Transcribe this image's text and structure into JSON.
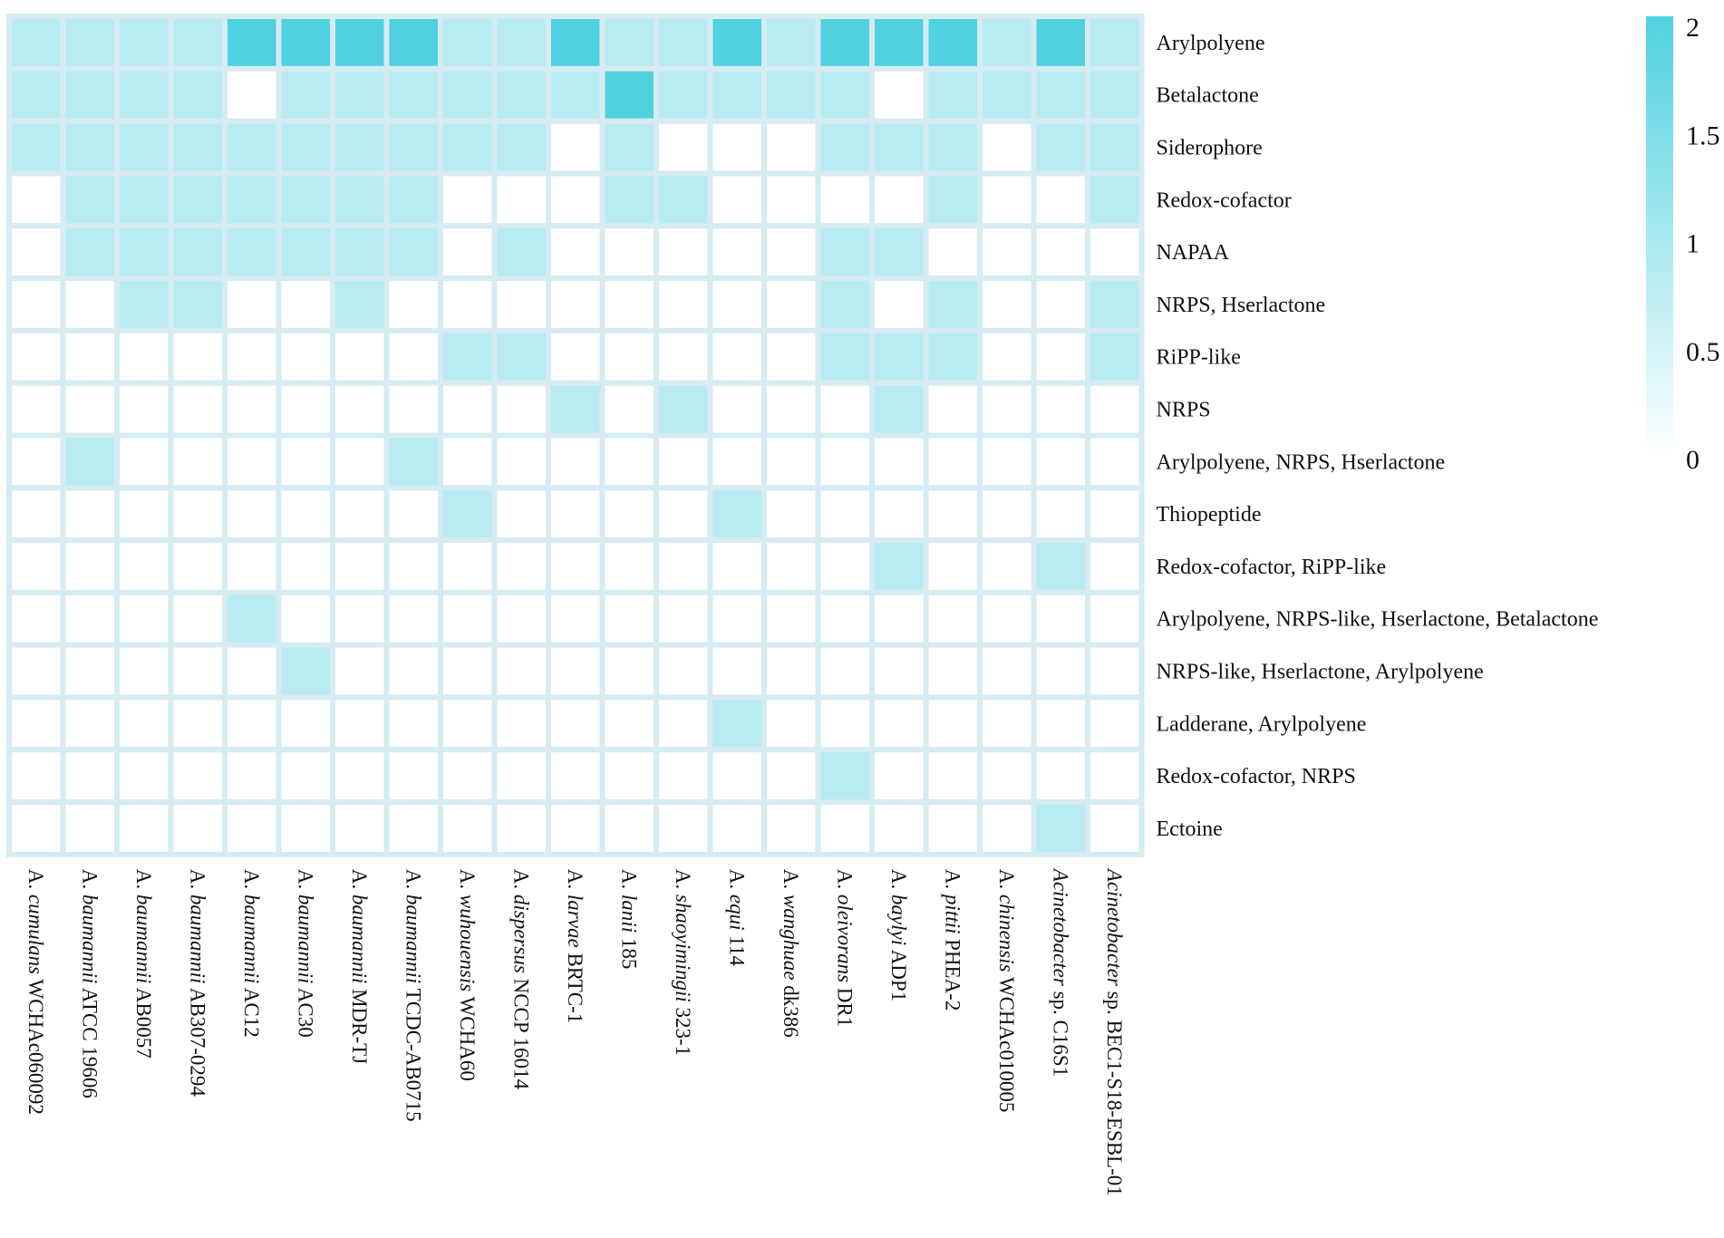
{
  "chart_data": {
    "type": "heatmap",
    "rows": [
      "Arylpolyene",
      "Betalactone",
      "Siderophore",
      "Redox-cofactor",
      "NAPAA",
      "NRPS, Hserlactone",
      "RiPP-like",
      "NRPS",
      "Arylpolyene, NRPS, Hserlactone",
      "Thiopeptide",
      "Redox-cofactor, RiPP-like",
      "Arylpolyene, NRPS-like, Hserlactone, Betalactone",
      "NRPS-like, Hserlactone, Arylpolyene",
      "Ladderane, Arylpolyene",
      "Redox-cofactor, NRPS",
      "Ectoine"
    ],
    "columns": [
      {
        "genus": "A.",
        "species": "cumulans",
        "strain": "WCHAc060092"
      },
      {
        "genus": "A.",
        "species": "baumannii",
        "strain": "ATCC 19606"
      },
      {
        "genus": "A.",
        "species": "baumannii",
        "strain": "AB0057"
      },
      {
        "genus": "A.",
        "species": "baumannii",
        "strain": "AB307-0294"
      },
      {
        "genus": "A.",
        "species": "baumannii",
        "strain": "AC12"
      },
      {
        "genus": "A.",
        "species": "baumannii",
        "strain": "AC30"
      },
      {
        "genus": "A.",
        "species": "baumannii",
        "strain": "MDR-TJ"
      },
      {
        "genus": "A.",
        "species": "baumannii",
        "strain": "TCDC-AB0715"
      },
      {
        "genus": "A.",
        "species": "wuhouensis",
        "strain": "WCHA60"
      },
      {
        "genus": "A.",
        "species": "dispersus",
        "strain": "NCCP 16014"
      },
      {
        "genus": "A.",
        "species": "larvae",
        "strain": "BRTC-1"
      },
      {
        "genus": "A.",
        "species": "lanii",
        "strain": "185"
      },
      {
        "genus": "A.",
        "species": "shaoyimingii",
        "strain": "323-1"
      },
      {
        "genus": "A.",
        "species": "equi",
        "strain": "114"
      },
      {
        "genus": "A.",
        "species": "wanghuae",
        "strain": "dk386"
      },
      {
        "genus": "A.",
        "species": "oleivorans",
        "strain": "DR1"
      },
      {
        "genus": "A.",
        "species": "baylyi",
        "strain": "ADP1"
      },
      {
        "genus": "A.",
        "species": "pittii",
        "strain": "PHEA-2"
      },
      {
        "genus": "A.",
        "species": "chinensis",
        "strain": "WCHAc010005"
      },
      {
        "genus": "",
        "species": "Acinetobacter",
        "strain": "sp. C16S1"
      },
      {
        "genus": "",
        "species": "Acinetobacter",
        "strain": "sp. BEC1-S18-ESBL-01"
      }
    ],
    "values": [
      [
        1,
        1,
        1,
        1,
        2,
        2,
        2,
        2,
        1,
        1,
        2,
        1,
        1,
        2,
        1,
        2,
        2,
        2,
        1,
        2,
        1
      ],
      [
        1,
        1,
        1,
        1,
        0,
        1,
        1,
        1,
        1,
        1,
        1,
        2,
        1,
        1,
        1,
        1,
        0,
        1,
        1,
        1,
        1
      ],
      [
        1,
        1,
        1,
        1,
        1,
        1,
        1,
        1,
        1,
        1,
        0,
        1,
        0,
        0,
        0,
        1,
        1,
        1,
        0,
        1,
        1
      ],
      [
        0,
        1,
        1,
        1,
        1,
        1,
        1,
        1,
        0,
        0,
        0,
        1,
        1,
        0,
        0,
        0,
        0,
        1,
        0,
        0,
        1
      ],
      [
        0,
        1,
        1,
        1,
        1,
        1,
        1,
        1,
        0,
        1,
        0,
        0,
        0,
        0,
        0,
        1,
        1,
        0,
        0,
        0,
        0
      ],
      [
        0,
        0,
        1,
        1,
        0,
        0,
        1,
        0,
        0,
        0,
        0,
        0,
        0,
        0,
        0,
        1,
        0,
        1,
        0,
        0,
        1
      ],
      [
        0,
        0,
        0,
        0,
        0,
        0,
        0,
        0,
        1,
        1,
        0,
        0,
        0,
        0,
        0,
        1,
        1,
        1,
        0,
        0,
        1
      ],
      [
        0,
        0,
        0,
        0,
        0,
        0,
        0,
        0,
        0,
        0,
        1,
        0,
        1,
        0,
        0,
        0,
        1,
        0,
        0,
        0,
        0
      ],
      [
        0,
        1,
        0,
        0,
        0,
        0,
        0,
        1,
        0,
        0,
        0,
        0,
        0,
        0,
        0,
        0,
        0,
        0,
        0,
        0,
        0
      ],
      [
        0,
        0,
        0,
        0,
        0,
        0,
        0,
        0,
        1,
        0,
        0,
        0,
        0,
        1,
        0,
        0,
        0,
        0,
        0,
        0,
        0
      ],
      [
        0,
        0,
        0,
        0,
        0,
        0,
        0,
        0,
        0,
        0,
        0,
        0,
        0,
        0,
        0,
        0,
        1,
        0,
        0,
        1,
        0
      ],
      [
        0,
        0,
        0,
        0,
        1,
        0,
        0,
        0,
        0,
        0,
        0,
        0,
        0,
        0,
        0,
        0,
        0,
        0,
        0,
        0,
        0
      ],
      [
        0,
        0,
        0,
        0,
        0,
        1,
        0,
        0,
        0,
        0,
        0,
        0,
        0,
        0,
        0,
        0,
        0,
        0,
        0,
        0,
        0
      ],
      [
        0,
        0,
        0,
        0,
        0,
        0,
        0,
        0,
        0,
        0,
        0,
        0,
        0,
        1,
        0,
        0,
        0,
        0,
        0,
        0,
        0
      ],
      [
        0,
        0,
        0,
        0,
        0,
        0,
        0,
        0,
        0,
        0,
        0,
        0,
        0,
        0,
        0,
        1,
        0,
        0,
        0,
        0,
        0
      ],
      [
        0,
        0,
        0,
        0,
        0,
        0,
        0,
        0,
        0,
        0,
        0,
        0,
        0,
        0,
        0,
        0,
        0,
        0,
        0,
        1,
        0
      ]
    ],
    "colorbar": {
      "min": 0,
      "max": 2,
      "ticks": [
        "2",
        "1.5",
        "1",
        "0.5",
        "0"
      ],
      "low_color": "#ffffff",
      "high_color": "#4fd1e0"
    },
    "grid_color": "#d6ebf2",
    "legend_position": "right"
  }
}
